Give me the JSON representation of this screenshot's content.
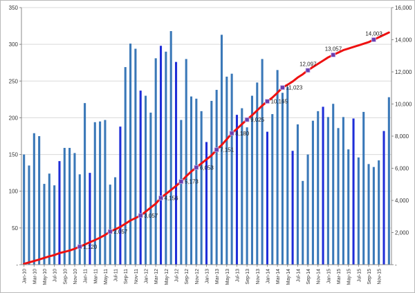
{
  "chart_data": {
    "type": "bar",
    "title": "",
    "xlabel": "",
    "ylabel": "",
    "ylim": [
      0,
      350
    ],
    "y2lim": [
      0,
      16000
    ],
    "yticks": [
      "-",
      "50",
      "100",
      "150",
      "200",
      "250",
      "300",
      "350"
    ],
    "y2ticks": [
      "-",
      "2,000",
      "4,000",
      "6,000",
      "8,000",
      "10,000",
      "12,000",
      "14,000",
      "16,000"
    ],
    "grid": true,
    "legend": "none",
    "colors": {
      "bar": "#3a78b8",
      "bar_highlight": "#1f2ed8",
      "line": "#ee1111",
      "marker": "#6a3fae",
      "grid": "#d9d9d9"
    },
    "x_tick_labels": [
      "Jan-10",
      "Mar-10",
      "May-10",
      "Jul-10",
      "Sep-10",
      "Nov-10",
      "Jan-11",
      "Mar-11",
      "May-11",
      "Jul-11",
      "Sep-11",
      "Nov-11",
      "Jan-12",
      "Mar-12",
      "May-12",
      "Jul-12",
      "Sep-12",
      "Nov-12",
      "Jan-13",
      "Mar-13",
      "May-13",
      "Jul-13",
      "Sep-13",
      "Nov-13",
      "Jan-14",
      "Mar-14",
      "May-14",
      "Jul-14",
      "Sep-14",
      "Nov-14",
      "Jan-15",
      "Mar-15",
      "May-15",
      "Jul-15",
      "Sep-15",
      "Nov-15"
    ],
    "monthly": [
      150,
      135,
      179,
      175,
      110,
      124,
      108,
      141,
      159,
      159,
      152,
      123,
      220,
      125,
      194,
      195,
      197,
      109,
      119,
      188,
      269,
      301,
      294,
      237,
      230,
      207,
      281,
      298,
      290,
      318,
      276,
      197,
      280,
      229,
      226,
      209,
      167,
      223,
      238,
      313,
      256,
      260,
      204,
      213,
      187,
      230,
      248,
      280,
      181,
      205,
      265,
      234,
      242,
      155,
      191,
      114,
      150,
      196,
      209,
      215,
      201,
      219,
      186,
      201,
      157,
      199,
      146,
      208,
      137,
      133,
      142,
      182,
      228
    ],
    "highlight_indices": [
      7,
      13,
      19,
      23,
      27,
      30,
      36,
      42,
      48,
      53,
      59,
      65,
      71
    ],
    "cumulative_line": [
      50,
      140,
      230,
      320,
      420,
      520,
      600,
      720,
      800,
      880,
      990,
      1120,
      1250,
      1400,
      1530,
      1680,
      1850,
      2057,
      2200,
      2350,
      2550,
      2750,
      2900,
      3057,
      3300,
      3550,
      3800,
      4156,
      4400,
      4650,
      4900,
      5173,
      5500,
      5800,
      6053,
      6300,
      6550,
      6800,
      7151,
      7450,
      7800,
      8180,
      8450,
      8750,
      9025,
      9300,
      9600,
      9900,
      10165,
      10400,
      10700,
      11023,
      11200,
      11400,
      11650,
      11850,
      12097,
      12300,
      12500,
      12700,
      12900,
      13057,
      13200,
      13350,
      13450,
      13550,
      13650,
      13750,
      13850,
      14003,
      14150,
      14300,
      14450
    ],
    "markers": [
      {
        "index": 11,
        "value": 1120,
        "label": "1,120"
      },
      {
        "index": 17,
        "value": 2057,
        "label": "2,057"
      },
      {
        "index": 23,
        "value": 3057,
        "label": "3,057"
      },
      {
        "index": 27,
        "value": 4156,
        "label": "4,156"
      },
      {
        "index": 31,
        "value": 5173,
        "label": "5,173"
      },
      {
        "index": 34,
        "value": 6053,
        "label": "6,053"
      },
      {
        "index": 38,
        "value": 7151,
        "label": "7,151"
      },
      {
        "index": 41,
        "value": 8180,
        "label": "8,180"
      },
      {
        "index": 44,
        "value": 9025,
        "label": "9,025"
      },
      {
        "index": 48,
        "value": 10165,
        "label": "10,165"
      },
      {
        "index": 51,
        "value": 11023,
        "label": "11,023"
      },
      {
        "index": 56,
        "value": 12097,
        "label": "12,097"
      },
      {
        "index": 61,
        "value": 13057,
        "label": "13,057"
      },
      {
        "index": 69,
        "value": 14003,
        "label": "14,003"
      }
    ]
  }
}
